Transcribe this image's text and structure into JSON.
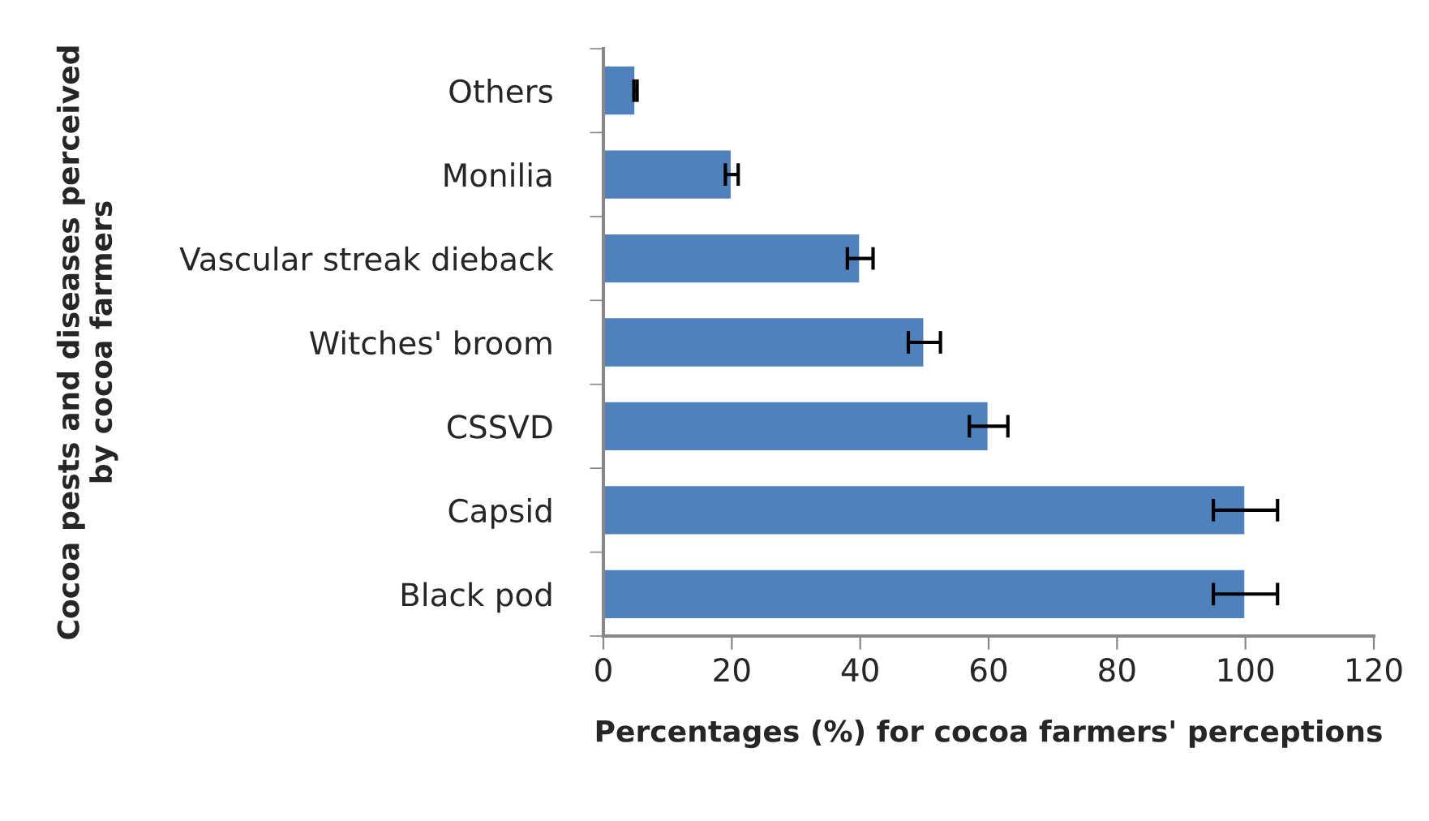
{
  "chart_data": {
    "type": "bar",
    "orientation": "horizontal",
    "categories": [
      "Others",
      "Monilia",
      "Vascular streak dieback",
      "Witches' broom",
      "CSSVD",
      "Capsid",
      "Black pod"
    ],
    "values": [
      5,
      20,
      40,
      50,
      60,
      100,
      100
    ],
    "errors": [
      0.25,
      1,
      2,
      2.5,
      3,
      5,
      5
    ],
    "color": "#4f81bd",
    "xlabel": "Percentages (%) for cocoa farmers' perceptions",
    "ylabel": "Cocoa pests and diseases perceived\nby cocoa farmers",
    "xlim": [
      0,
      120
    ],
    "xticks": [
      0,
      20,
      40,
      60,
      80,
      100,
      120
    ],
    "grid": false,
    "legend": false
  }
}
